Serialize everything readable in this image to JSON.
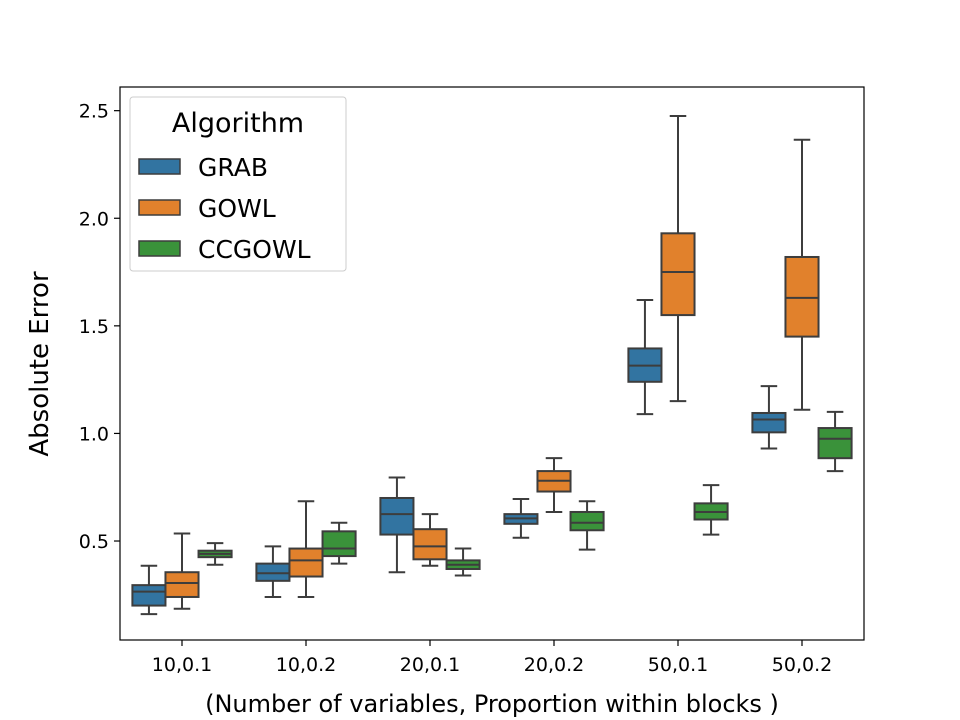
{
  "chart_data": {
    "type": "box",
    "title": "",
    "xlabel": "(Number of variables, Proportion within blocks )",
    "ylabel": "Absolute Error",
    "ylim": [
      0.04,
      2.61
    ],
    "yticks": [
      0.5,
      1.0,
      1.5,
      2.0,
      2.5
    ],
    "ytick_labels": [
      "0.5",
      "1.0",
      "1.5",
      "2.0",
      "2.5"
    ],
    "grid": false,
    "legend": {
      "title": "Algorithm",
      "placement": "top-left",
      "entries": [
        "GRAB",
        "GOWL",
        "CCGOWL"
      ]
    },
    "categories": [
      "10,0.1",
      "10,0.2",
      "20,0.1",
      "20,0.2",
      "50,0.1",
      "50,0.2"
    ],
    "series": [
      {
        "name": "GRAB",
        "color": "#3274a1",
        "boxes": [
          {
            "whisker_low": 0.16,
            "q1": 0.2,
            "median": 0.265,
            "q3": 0.295,
            "whisker_high": 0.385
          },
          {
            "whisker_low": 0.24,
            "q1": 0.315,
            "median": 0.35,
            "q3": 0.395,
            "whisker_high": 0.475
          },
          {
            "whisker_low": 0.355,
            "q1": 0.53,
            "median": 0.625,
            "q3": 0.7,
            "whisker_high": 0.795
          },
          {
            "whisker_low": 0.515,
            "q1": 0.58,
            "median": 0.605,
            "q3": 0.625,
            "whisker_high": 0.695
          },
          {
            "whisker_low": 1.09,
            "q1": 1.24,
            "median": 1.315,
            "q3": 1.395,
            "whisker_high": 1.62
          },
          {
            "whisker_low": 0.93,
            "q1": 1.005,
            "median": 1.065,
            "q3": 1.095,
            "whisker_high": 1.22
          }
        ]
      },
      {
        "name": "GOWL",
        "color": "#e1812c",
        "boxes": [
          {
            "whisker_low": 0.185,
            "q1": 0.24,
            "median": 0.305,
            "q3": 0.355,
            "whisker_high": 0.535
          },
          {
            "whisker_low": 0.24,
            "q1": 0.335,
            "median": 0.41,
            "q3": 0.465,
            "whisker_high": 0.685
          },
          {
            "whisker_low": 0.385,
            "q1": 0.415,
            "median": 0.475,
            "q3": 0.555,
            "whisker_high": 0.625
          },
          {
            "whisker_low": 0.635,
            "q1": 0.73,
            "median": 0.78,
            "q3": 0.825,
            "whisker_high": 0.885
          },
          {
            "whisker_low": 1.15,
            "q1": 1.55,
            "median": 1.75,
            "q3": 1.93,
            "whisker_high": 2.475
          },
          {
            "whisker_low": 1.11,
            "q1": 1.45,
            "median": 1.63,
            "q3": 1.82,
            "whisker_high": 2.365
          }
        ]
      },
      {
        "name": "CCGOWL",
        "color": "#3a923a",
        "boxes": [
          {
            "whisker_low": 0.39,
            "q1": 0.425,
            "median": 0.44,
            "q3": 0.455,
            "whisker_high": 0.49
          },
          {
            "whisker_low": 0.395,
            "q1": 0.43,
            "median": 0.465,
            "q3": 0.545,
            "whisker_high": 0.585
          },
          {
            "whisker_low": 0.34,
            "q1": 0.37,
            "median": 0.39,
            "q3": 0.41,
            "whisker_high": 0.465
          },
          {
            "whisker_low": 0.46,
            "q1": 0.55,
            "median": 0.585,
            "q3": 0.635,
            "whisker_high": 0.685
          },
          {
            "whisker_low": 0.53,
            "q1": 0.6,
            "median": 0.635,
            "q3": 0.675,
            "whisker_high": 0.76
          },
          {
            "whisker_low": 0.825,
            "q1": 0.885,
            "median": 0.975,
            "q3": 1.025,
            "whisker_high": 1.1
          }
        ]
      }
    ]
  }
}
